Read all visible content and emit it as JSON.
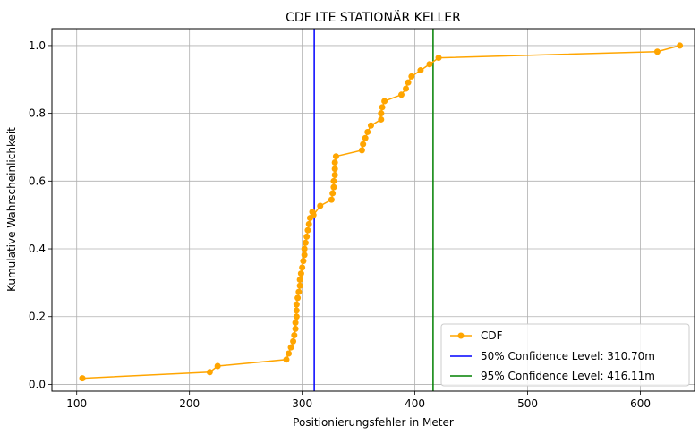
{
  "chart_data": {
    "type": "line",
    "title": "CDF LTE STATIONÄR KELLER",
    "xlabel": "Positionierungsfehler in Meter",
    "ylabel": "Kumulative Wahrscheinlichkeit",
    "xlim": [
      78,
      648
    ],
    "ylim": [
      -0.02,
      1.05
    ],
    "xticks": [
      100,
      200,
      300,
      400,
      500,
      600
    ],
    "yticks": [
      0.0,
      0.2,
      0.4,
      0.6,
      0.8,
      1.0
    ],
    "xtick_labels": [
      "100",
      "200",
      "300",
      "400",
      "500",
      "600"
    ],
    "ytick_labels": [
      "0.0",
      "0.2",
      "0.4",
      "0.6",
      "0.8",
      "1.0"
    ],
    "grid": true,
    "legend_position": "bottom-right",
    "series": [
      {
        "name": "CDF",
        "color": "#FFA500",
        "marker": "circle",
        "x": [
          105,
          218,
          225,
          286,
          288,
          290,
          292,
          293,
          294,
          294,
          295,
          295,
          295,
          296,
          297,
          298,
          298,
          299,
          300,
          301,
          302,
          302,
          303,
          304,
          305,
          306,
          307,
          309,
          310,
          316,
          326,
          327,
          328,
          328,
          329,
          329,
          329,
          330,
          353,
          354,
          356,
          358,
          361,
          370,
          370,
          371,
          373,
          388,
          392,
          394,
          397,
          405,
          413,
          421,
          615,
          635
        ],
        "y": [
          0.018,
          0.036,
          0.054,
          0.073,
          0.091,
          0.109,
          0.127,
          0.145,
          0.164,
          0.182,
          0.2,
          0.218,
          0.236,
          0.255,
          0.273,
          0.291,
          0.309,
          0.327,
          0.345,
          0.364,
          0.382,
          0.4,
          0.418,
          0.436,
          0.455,
          0.473,
          0.491,
          0.509,
          0.5,
          0.527,
          0.545,
          0.564,
          0.582,
          0.6,
          0.618,
          0.636,
          0.655,
          0.673,
          0.691,
          0.709,
          0.727,
          0.745,
          0.764,
          0.782,
          0.8,
          0.818,
          0.836,
          0.855,
          0.873,
          0.891,
          0.909,
          0.927,
          0.945,
          0.964,
          0.982,
          1.0
        ]
      }
    ],
    "vlines": [
      {
        "name": "50% Confidence Level: 310.70m",
        "x": 310.7,
        "color": "#0000FF"
      },
      {
        "name": "95% Confidence Level: 416.11m",
        "x": 416.11,
        "color": "#008000"
      }
    ]
  }
}
